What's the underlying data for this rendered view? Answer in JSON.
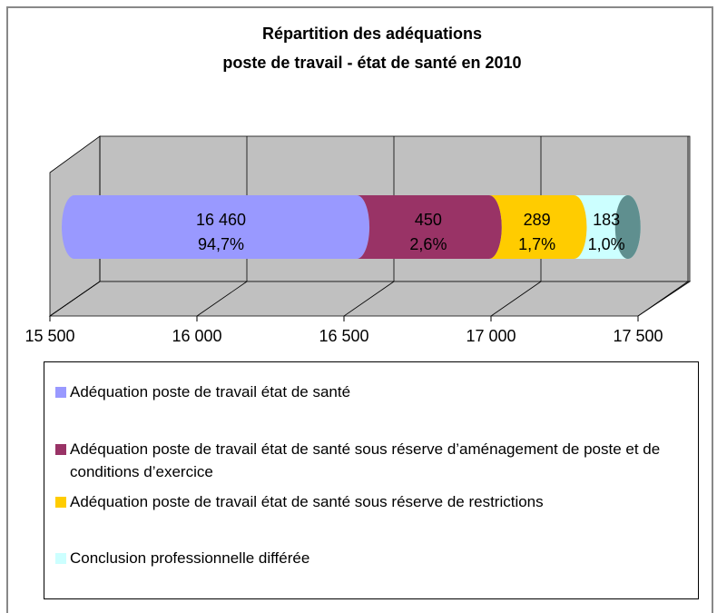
{
  "chart_data": {
    "type": "stacked-bar-3d",
    "title": "Répartition des adéquations",
    "subtitle": "poste de travail - état de santé en 2010",
    "xlim": [
      15500,
      17500
    ],
    "xticks": [
      {
        "value": 15500,
        "label": "15 500"
      },
      {
        "value": 16000,
        "label": "16 000"
      },
      {
        "value": 16500,
        "label": "16 500"
      },
      {
        "value": 17000,
        "label": "17 000"
      },
      {
        "value": 17500,
        "label": "17 500"
      }
    ],
    "grid": true,
    "series": [
      {
        "name": "Adéquation poste de travail état de santé",
        "color": "#9999ff",
        "values": [
          16460
        ],
        "value_labels": [
          "16 460"
        ],
        "percent": 94.7,
        "percent_label": "94,7%"
      },
      {
        "name": "Adéquation poste de travail état de santé sous réserve d’aménagement de poste et de conditions d’exercice",
        "color": "#993366",
        "values": [
          450
        ],
        "value_labels": [
          "450"
        ],
        "percent": 2.6,
        "percent_label": "2,6%"
      },
      {
        "name": "Adéquation poste de travail état de santé sous réserve de restrictions",
        "color": "#ffcc00",
        "values": [
          289
        ],
        "value_labels": [
          "289"
        ],
        "percent": 1.7,
        "percent_label": "1,7%"
      },
      {
        "name": "Conclusion professionnelle différée",
        "color": "#ccffff",
        "values": [
          183
        ],
        "value_labels": [
          "183"
        ],
        "percent": 1.0,
        "percent_label": "1,0%"
      }
    ]
  }
}
